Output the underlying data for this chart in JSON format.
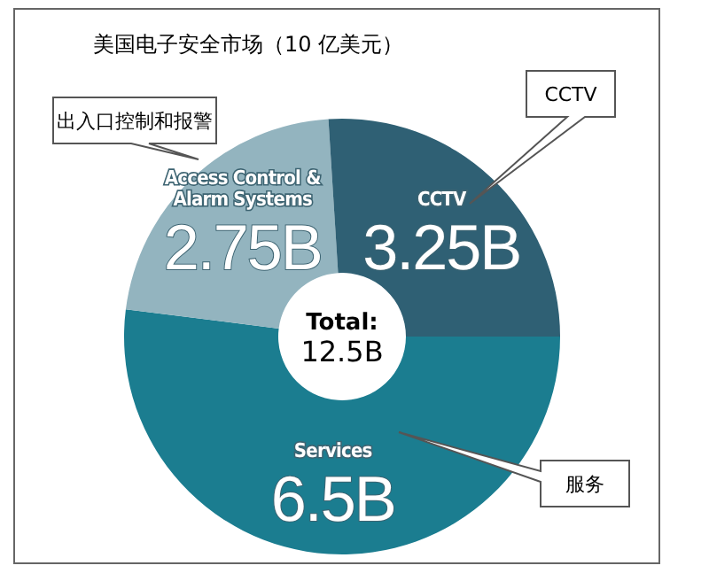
{
  "chart_data": {
    "type": "donut",
    "title": "美国电子安全市场（10 亿美元）",
    "categories": [
      "Services",
      "Access Control & Alarm Systems",
      "CCTV"
    ],
    "values": [
      6.5,
      2.75,
      3.25
    ],
    "value_labels": [
      "6.5B",
      "2.75B",
      "3.25B"
    ],
    "colors": [
      "#1b7d90",
      "#93b4bf",
      "#2f6074"
    ],
    "annotations": [
      "Total:",
      "12.5B",
      "服务",
      "出入口控制和报警",
      "CCTV"
    ]
  }
}
